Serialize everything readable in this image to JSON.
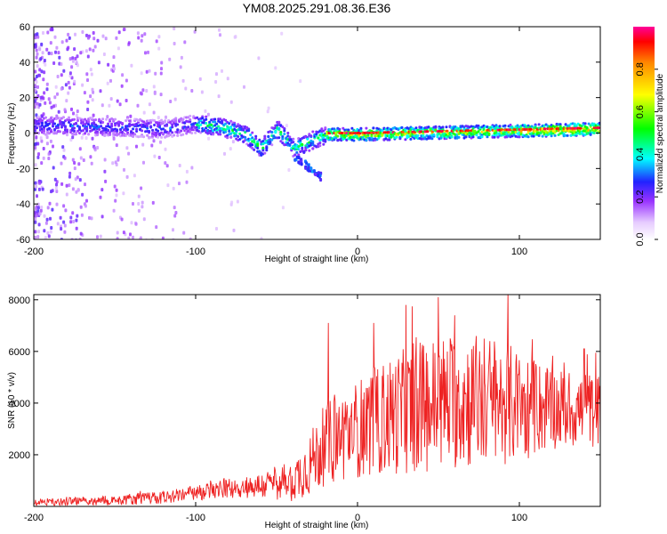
{
  "title": "YM08.2025.291.08.36.E36",
  "chart_data": [
    {
      "type": "heatmap",
      "name": "spectrogram",
      "xlabel": "Height of straight line (km)",
      "ylabel": "Frequency (Hz)",
      "xlim": [
        -200,
        150
      ],
      "ylim": [
        -60,
        60
      ],
      "xticks": [
        -200,
        -100,
        0,
        100
      ],
      "yticks": [
        -60,
        -40,
        -20,
        0,
        20,
        40,
        60
      ],
      "colorbar": {
        "label": "Normalized spectral amplitude",
        "range": [
          0,
          1
        ],
        "ticks": [
          0.0,
          0.2,
          0.4,
          0.6,
          0.8
        ]
      },
      "ridge": [
        {
          "x": -200,
          "y": 5
        },
        {
          "x": -150,
          "y": 4
        },
        {
          "x": -120,
          "y": 3
        },
        {
          "x": -100,
          "y": 6
        },
        {
          "x": -85,
          "y": 4
        },
        {
          "x": -70,
          "y": 0
        },
        {
          "x": -60,
          "y": -8
        },
        {
          "x": -50,
          "y": 3
        },
        {
          "x": -40,
          "y": -8
        },
        {
          "x": -30,
          "y": -4
        },
        {
          "x": -20,
          "y": 0
        },
        {
          "x": 0,
          "y": 0
        },
        {
          "x": 50,
          "y": 1
        },
        {
          "x": 100,
          "y": 2
        },
        {
          "x": 150,
          "y": 3
        }
      ]
    },
    {
      "type": "line",
      "name": "snr",
      "xlabel": "Height of straight line (km)",
      "ylabel": "SNR (10 * v/v)",
      "xlim": [
        -200,
        150
      ],
      "ylim": [
        0,
        8200
      ],
      "xticks": [
        -200,
        -100,
        0,
        100
      ],
      "yticks": [
        2000,
        4000,
        6000,
        8000
      ],
      "color": "#ee2222",
      "envelope": [
        {
          "x": -200,
          "base": 150,
          "amp": 120
        },
        {
          "x": -150,
          "base": 250,
          "amp": 200
        },
        {
          "x": -120,
          "base": 350,
          "amp": 250
        },
        {
          "x": -100,
          "base": 500,
          "amp": 300
        },
        {
          "x": -80,
          "base": 700,
          "amp": 400
        },
        {
          "x": -60,
          "base": 800,
          "amp": 500
        },
        {
          "x": -40,
          "base": 1000,
          "amp": 800
        },
        {
          "x": -30,
          "base": 1600,
          "amp": 1200
        },
        {
          "x": -20,
          "base": 2400,
          "amp": 1600
        },
        {
          "x": 0,
          "base": 3000,
          "amp": 1900
        },
        {
          "x": 20,
          "base": 3500,
          "amp": 2300
        },
        {
          "x": 40,
          "base": 3900,
          "amp": 2600
        },
        {
          "x": 60,
          "base": 4100,
          "amp": 2700
        },
        {
          "x": 80,
          "base": 4100,
          "amp": 2600
        },
        {
          "x": 100,
          "base": 3900,
          "amp": 2200
        },
        {
          "x": 120,
          "base": 3800,
          "amp": 1600
        },
        {
          "x": 150,
          "base": 3700,
          "amp": 1400
        }
      ],
      "peaks": [
        {
          "x": -18,
          "y": 7100
        },
        {
          "x": 10,
          "y": 7100
        },
        {
          "x": 30,
          "y": 7800
        },
        {
          "x": 50,
          "y": 8100
        },
        {
          "x": 60,
          "y": 7400
        },
        {
          "x": 93,
          "y": 8300
        },
        {
          "x": 140,
          "y": 6100
        }
      ]
    }
  ]
}
